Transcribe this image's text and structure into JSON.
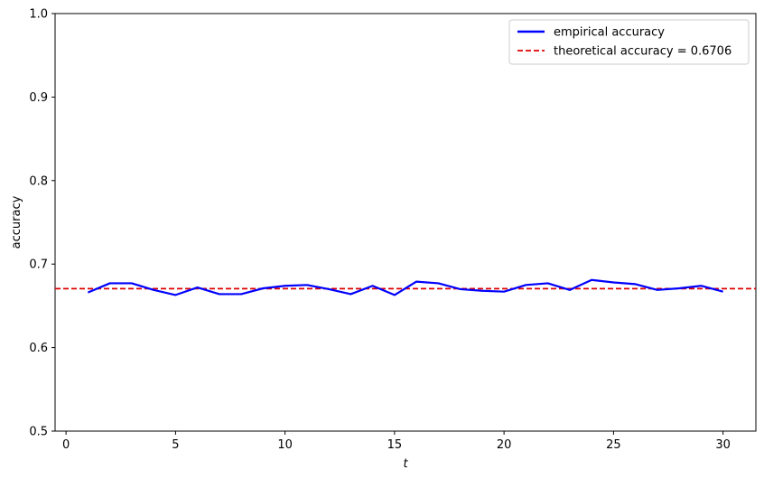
{
  "chart_data": {
    "type": "line",
    "xlabel": "t",
    "ylabel": "accuracy",
    "xlim": [
      -0.5,
      31.5
    ],
    "ylim": [
      0.5,
      1.0
    ],
    "x_ticks": [
      0,
      5,
      10,
      15,
      20,
      25,
      30
    ],
    "y_ticks": [
      0.5,
      0.6,
      0.7,
      0.8,
      0.9,
      1.0
    ],
    "x_tick_labels": [
      "0",
      "5",
      "10",
      "15",
      "20",
      "25",
      "30"
    ],
    "y_tick_labels": [
      "0.5",
      "0.6",
      "0.7",
      "0.8",
      "0.9",
      "1.0"
    ],
    "grid": false,
    "legend_position": "top-right",
    "series": [
      {
        "name": "empirical accuracy",
        "color": "#0000ff",
        "style": "solid",
        "x": [
          1,
          2,
          3,
          4,
          5,
          6,
          7,
          8,
          9,
          10,
          11,
          12,
          13,
          14,
          15,
          16,
          17,
          18,
          19,
          20,
          21,
          22,
          23,
          24,
          25,
          26,
          27,
          28,
          29,
          30
        ],
        "values": [
          0.666,
          0.677,
          0.677,
          0.669,
          0.663,
          0.672,
          0.664,
          0.664,
          0.671,
          0.674,
          0.675,
          0.67,
          0.664,
          0.674,
          0.663,
          0.679,
          0.677,
          0.67,
          0.668,
          0.667,
          0.675,
          0.677,
          0.669,
          0.681,
          0.678,
          0.676,
          0.669,
          0.671,
          0.674,
          0.667
        ]
      }
    ],
    "reference_lines": [
      {
        "name": "theoretical accuracy = 0.6706",
        "value": 0.6706,
        "color": "#dd0000",
        "style": "dashed"
      }
    ]
  }
}
